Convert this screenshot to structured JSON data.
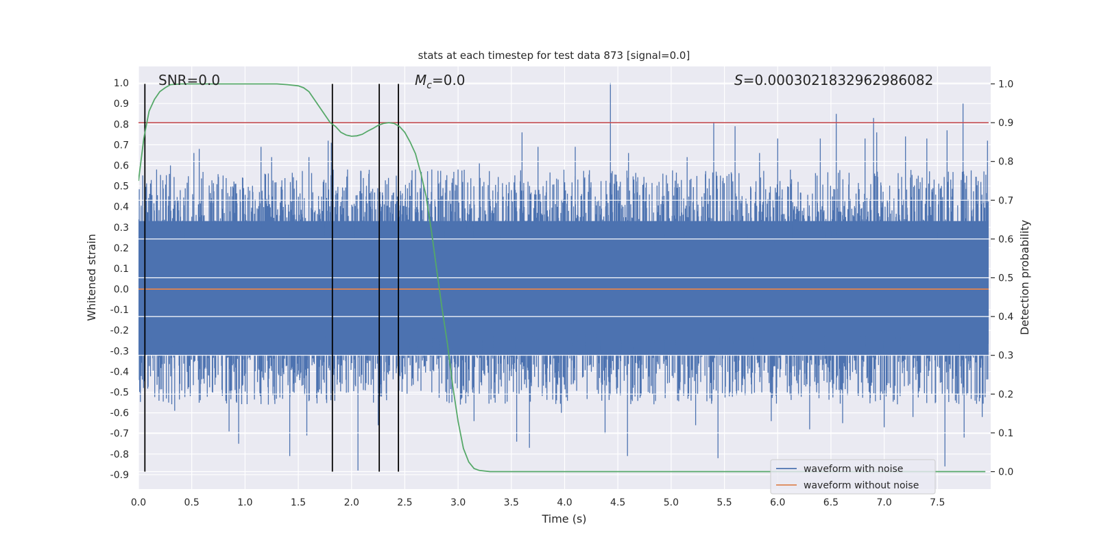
{
  "chart_data": {
    "type": "line",
    "title": "stats at each timestep for test data 873 [signal=0.0]",
    "xlabel": "Time (s)",
    "ylabel": "Whitened strain",
    "y2label": "Detection probability",
    "xlim": [
      0.0,
      8.0
    ],
    "ylim": [
      -0.97,
      1.08
    ],
    "y2lim": [
      -0.045,
      1.045
    ],
    "xticks": [
      "0.0",
      "0.5",
      "1.0",
      "1.5",
      "2.0",
      "2.5",
      "3.0",
      "3.5",
      "4.0",
      "4.5",
      "5.0",
      "5.5",
      "6.0",
      "6.5",
      "7.0",
      "7.5"
    ],
    "yticks": [
      "1.0",
      "0.9",
      "0.8",
      "0.7",
      "0.6",
      "0.5",
      "0.4",
      "0.3",
      "0.2",
      "0.1",
      "0.0",
      "-0.1",
      "-0.2",
      "-0.3",
      "-0.4",
      "-0.5",
      "-0.6",
      "-0.7",
      "-0.8",
      "-0.9"
    ],
    "y2ticks": [
      "1.0",
      "0.9",
      "0.8",
      "0.7",
      "0.6",
      "0.5",
      "0.4",
      "0.3",
      "0.2",
      "0.1",
      "0.0"
    ],
    "annotations": {
      "snr": "SNR=0.0",
      "mc_symbol": "M",
      "mc_sub": "c",
      "mc_value": "=0.0",
      "s_symbol": "S",
      "s_value": "=0.0003021832962986082"
    },
    "legend": {
      "location": "lower-right",
      "entries": [
        {
          "label": "waveform with noise",
          "color": "#4c72b0"
        },
        {
          "label": "waveform without noise",
          "color": "#dd8452"
        }
      ]
    },
    "threshold": {
      "y2": 0.9,
      "color": "#c44e52"
    },
    "vlines_x": [
      0.06,
      1.82,
      2.26,
      2.44
    ],
    "noise_series": {
      "name": "waveform with noise",
      "color": "#4c72b0",
      "band": [
        -0.32,
        0.33
      ],
      "peaks": [
        {
          "x": 0.17,
          "y": 0.58
        },
        {
          "x": 0.3,
          "y": 0.6
        },
        {
          "x": 0.52,
          "y": 0.66
        },
        {
          "x": 0.57,
          "y": 0.68
        },
        {
          "x": 1.15,
          "y": 0.69
        },
        {
          "x": 1.25,
          "y": 0.64
        },
        {
          "x": 1.6,
          "y": 0.64
        },
        {
          "x": 1.78,
          "y": 0.72
        },
        {
          "x": 1.81,
          "y": 0.71
        },
        {
          "x": 2.42,
          "y": 0.55
        },
        {
          "x": 2.6,
          "y": 0.58
        },
        {
          "x": 3.0,
          "y": 0.58
        },
        {
          "x": 3.2,
          "y": 0.61
        },
        {
          "x": 3.6,
          "y": 0.76
        },
        {
          "x": 3.75,
          "y": 0.69
        },
        {
          "x": 4.1,
          "y": 0.69
        },
        {
          "x": 4.43,
          "y": 1.0
        },
        {
          "x": 4.6,
          "y": 0.66
        },
        {
          "x": 5.15,
          "y": 0.64
        },
        {
          "x": 5.4,
          "y": 0.81
        },
        {
          "x": 5.6,
          "y": 0.79
        },
        {
          "x": 5.83,
          "y": 0.66
        },
        {
          "x": 6.0,
          "y": 0.73
        },
        {
          "x": 6.4,
          "y": 0.73
        },
        {
          "x": 6.55,
          "y": 0.85
        },
        {
          "x": 6.82,
          "y": 0.73
        },
        {
          "x": 6.9,
          "y": 0.83
        },
        {
          "x": 6.93,
          "y": 0.76
        },
        {
          "x": 7.2,
          "y": 0.74
        },
        {
          "x": 7.4,
          "y": 0.73
        },
        {
          "x": 7.59,
          "y": 0.77
        },
        {
          "x": 7.74,
          "y": 0.9
        },
        {
          "x": 7.97,
          "y": 0.72
        }
      ],
      "troughs": [
        {
          "x": 0.06,
          "y": -0.44
        },
        {
          "x": 0.34,
          "y": -0.59
        },
        {
          "x": 0.85,
          "y": -0.69
        },
        {
          "x": 0.94,
          "y": -0.75
        },
        {
          "x": 1.42,
          "y": -0.81
        },
        {
          "x": 1.58,
          "y": -0.71
        },
        {
          "x": 1.82,
          "y": -0.57
        },
        {
          "x": 2.06,
          "y": -0.88
        },
        {
          "x": 2.25,
          "y": -0.66
        },
        {
          "x": 3.15,
          "y": -0.64
        },
        {
          "x": 3.55,
          "y": -0.74
        },
        {
          "x": 3.67,
          "y": -0.77
        },
        {
          "x": 3.97,
          "y": -0.6
        },
        {
          "x": 4.38,
          "y": -0.7
        },
        {
          "x": 4.59,
          "y": -0.81
        },
        {
          "x": 5.23,
          "y": -0.66
        },
        {
          "x": 5.44,
          "y": -0.82
        },
        {
          "x": 5.94,
          "y": -0.64
        },
        {
          "x": 6.3,
          "y": -0.68
        },
        {
          "x": 6.61,
          "y": -0.65
        },
        {
          "x": 7.0,
          "y": -0.67
        },
        {
          "x": 7.27,
          "y": -0.62
        },
        {
          "x": 7.57,
          "y": -0.86
        },
        {
          "x": 7.75,
          "y": -0.72
        },
        {
          "x": 7.92,
          "y": -0.62
        }
      ]
    },
    "clean_series": {
      "name": "waveform without noise",
      "color": "#dd8452",
      "y": 0.0
    },
    "probability_series": {
      "name": "Detection probability",
      "color": "#55a868",
      "points": [
        [
          0.0,
          0.75
        ],
        [
          0.05,
          0.86
        ],
        [
          0.1,
          0.93
        ],
        [
          0.15,
          0.96
        ],
        [
          0.2,
          0.98
        ],
        [
          0.25,
          0.99
        ],
        [
          0.3,
          0.998
        ],
        [
          0.4,
          1.0
        ],
        [
          1.0,
          1.0
        ],
        [
          1.3,
          1.0
        ],
        [
          1.4,
          0.998
        ],
        [
          1.5,
          0.995
        ],
        [
          1.55,
          0.99
        ],
        [
          1.6,
          0.98
        ],
        [
          1.65,
          0.96
        ],
        [
          1.7,
          0.94
        ],
        [
          1.75,
          0.92
        ],
        [
          1.8,
          0.9
        ],
        [
          1.85,
          0.89
        ],
        [
          1.9,
          0.875
        ],
        [
          1.95,
          0.868
        ],
        [
          2.0,
          0.865
        ],
        [
          2.05,
          0.866
        ],
        [
          2.1,
          0.87
        ],
        [
          2.15,
          0.878
        ],
        [
          2.2,
          0.885
        ],
        [
          2.25,
          0.893
        ],
        [
          2.3,
          0.898
        ],
        [
          2.35,
          0.9
        ],
        [
          2.4,
          0.898
        ],
        [
          2.45,
          0.89
        ],
        [
          2.5,
          0.875
        ],
        [
          2.55,
          0.85
        ],
        [
          2.6,
          0.82
        ],
        [
          2.65,
          0.77
        ],
        [
          2.7,
          0.71
        ],
        [
          2.75,
          0.62
        ],
        [
          2.8,
          0.52
        ],
        [
          2.85,
          0.42
        ],
        [
          2.9,
          0.33
        ],
        [
          2.95,
          0.22
        ],
        [
          3.0,
          0.13
        ],
        [
          3.05,
          0.06
        ],
        [
          3.1,
          0.025
        ],
        [
          3.15,
          0.008
        ],
        [
          3.2,
          0.003
        ],
        [
          3.3,
          0.0
        ],
        [
          7.95,
          0.0
        ]
      ]
    }
  }
}
